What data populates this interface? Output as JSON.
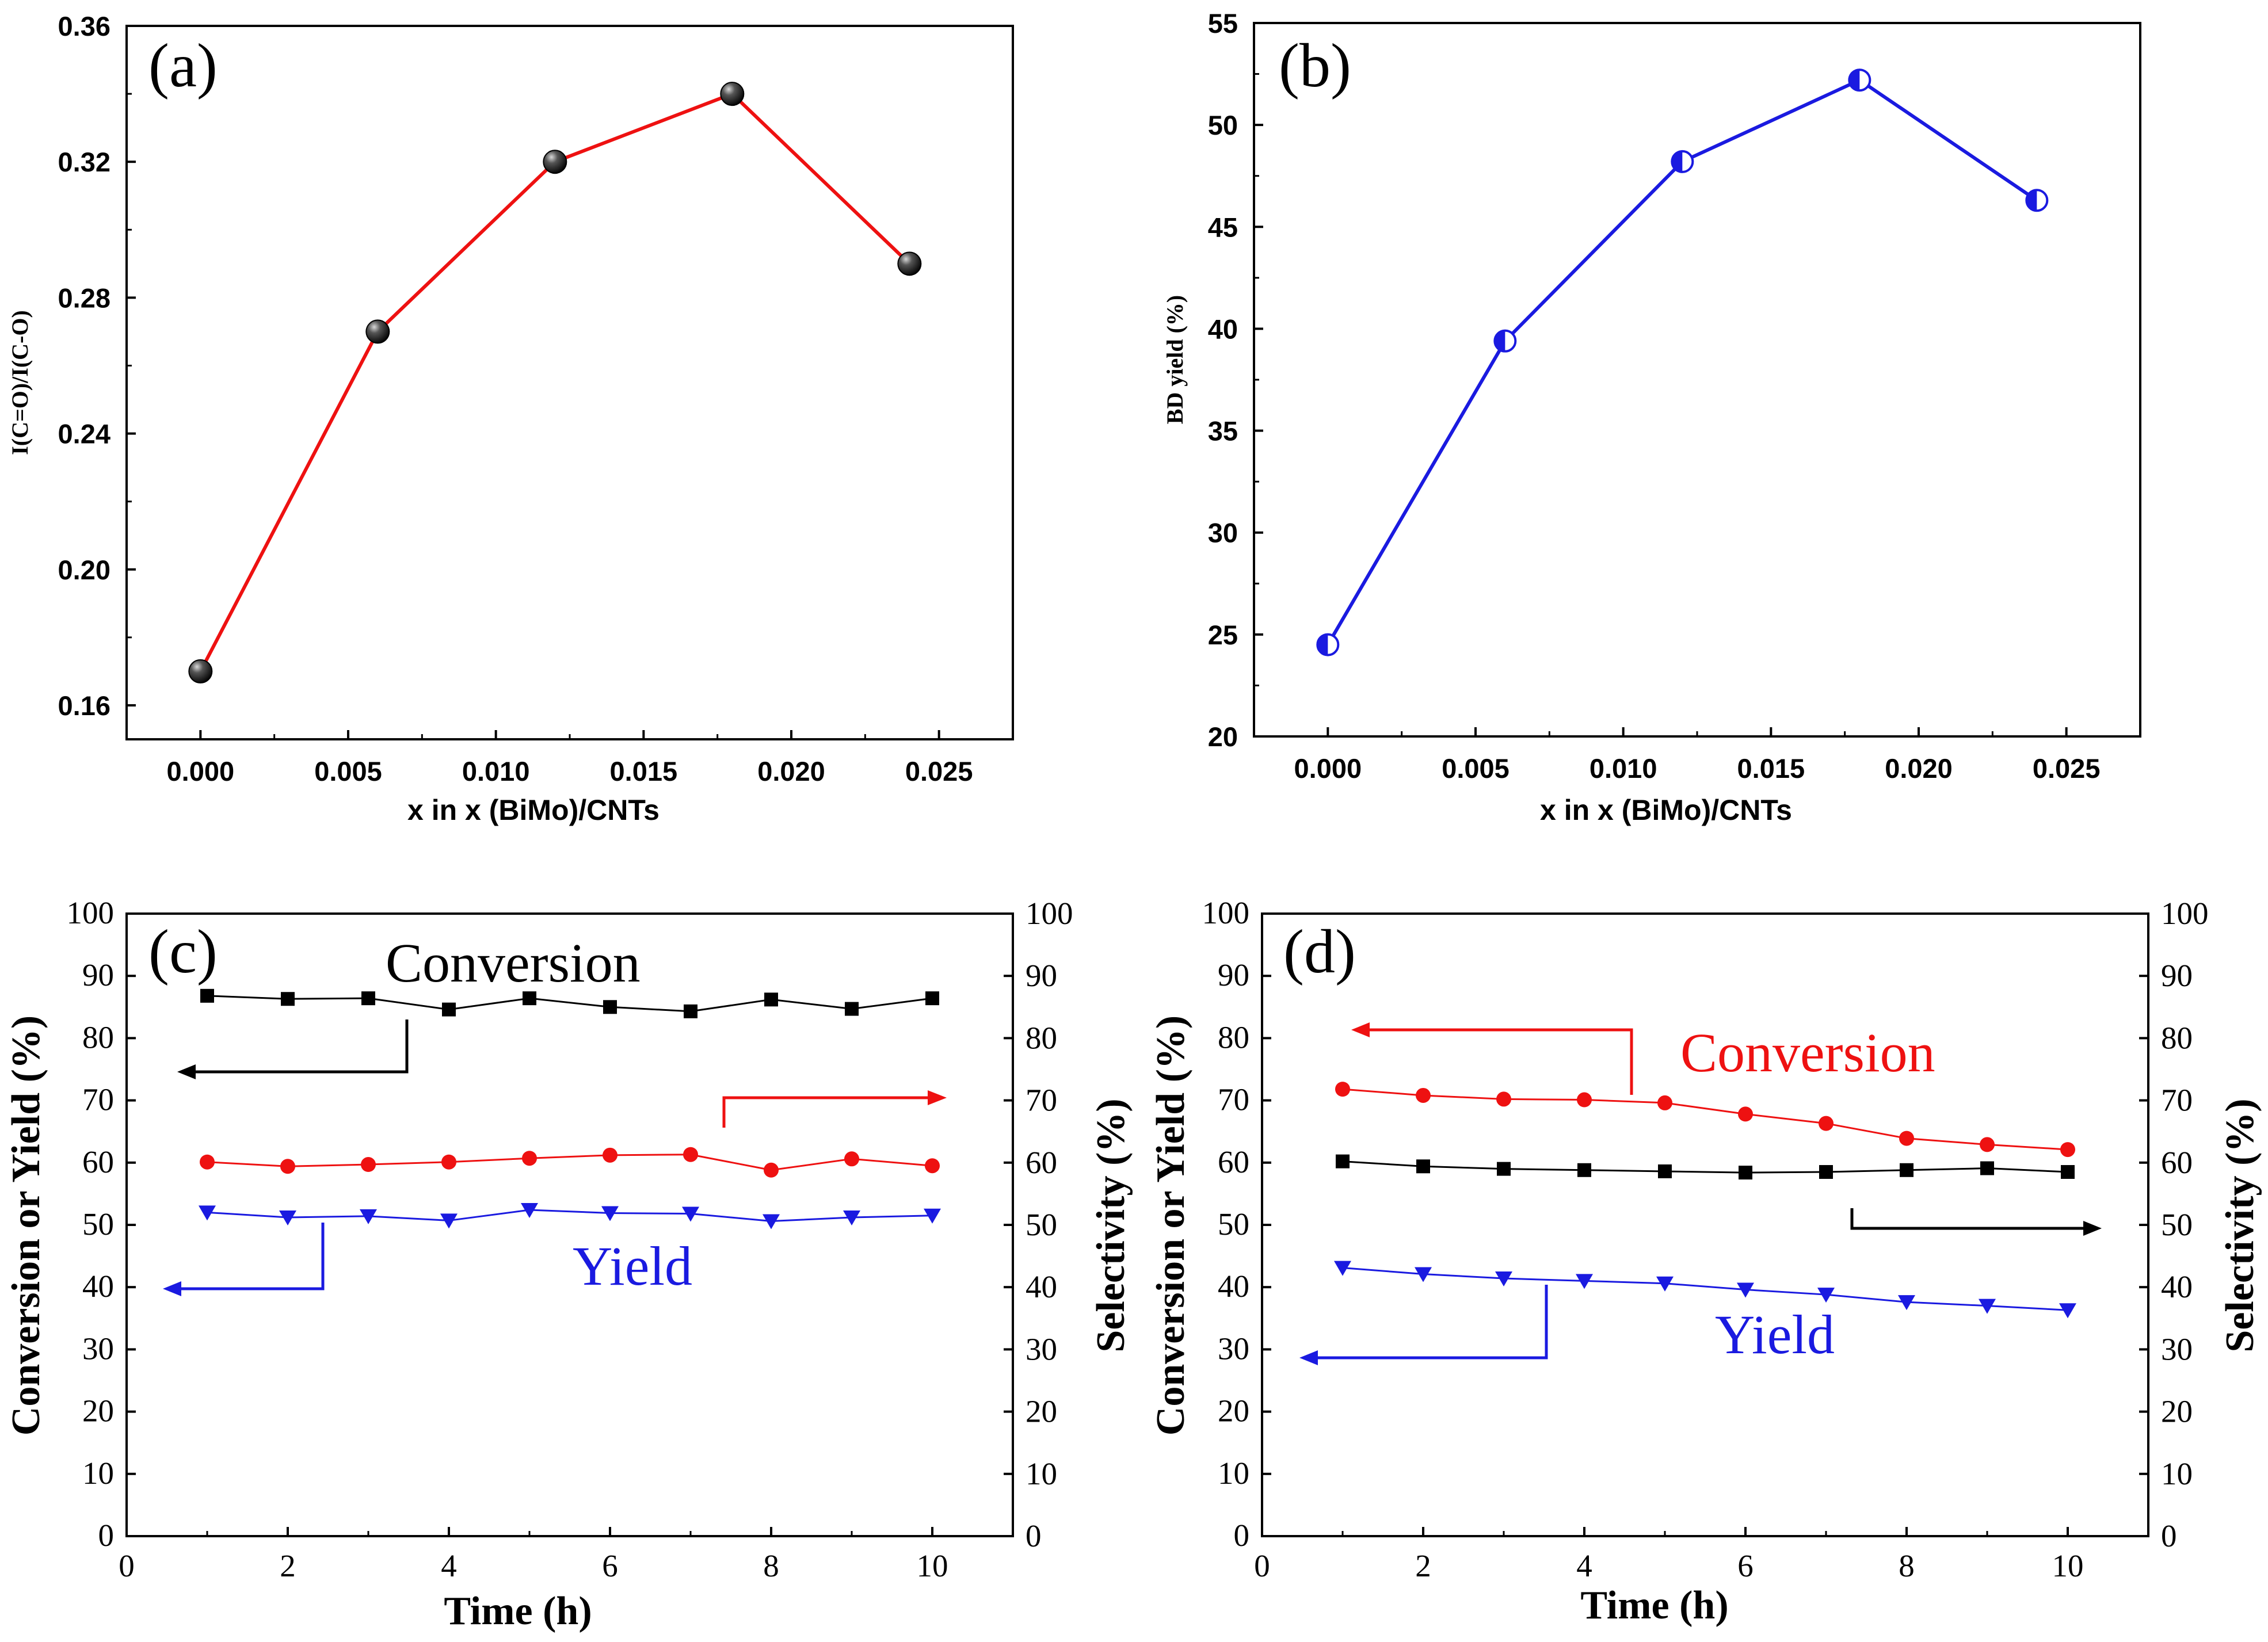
{
  "chart_data": [
    {
      "panel": "(a)",
      "type": "line",
      "xlabel": "x in x (BiMo)/CNTs",
      "ylabel": "I(C=O)/I(C-O)",
      "xlim": [
        -0.0025,
        0.0275
      ],
      "ylim": [
        0.15,
        0.36
      ],
      "xticks": [
        0.0,
        0.005,
        0.01,
        0.015,
        0.02,
        0.025
      ],
      "xtick_labels": [
        "0.000",
        "0.005",
        "0.010",
        "0.015",
        "0.020",
        "0.025"
      ],
      "yticks": [
        0.16,
        0.2,
        0.24,
        0.28,
        0.32,
        0.36
      ],
      "ytick_labels": [
        "0.16",
        "0.20",
        "0.24",
        "0.28",
        "0.32",
        "0.36"
      ],
      "series": [
        {
          "name": "I(C=O)/I(C-O)",
          "color": "#ee1111",
          "marker": "sphere",
          "marker_color": "#111111",
          "x": [
            0.0,
            0.006,
            0.012,
            0.018,
            0.024
          ],
          "y": [
            0.17,
            0.27,
            0.32,
            0.34,
            0.29
          ]
        }
      ]
    },
    {
      "panel": "(b)",
      "type": "line",
      "xlabel": "x in x (BiMo)/CNTs",
      "ylabel": "BD yield (%)",
      "xlim": [
        -0.0025,
        0.0275
      ],
      "ylim": [
        20,
        55
      ],
      "xticks": [
        0.0,
        0.005,
        0.01,
        0.015,
        0.02,
        0.025
      ],
      "xtick_labels": [
        "0.000",
        "0.005",
        "0.010",
        "0.015",
        "0.020",
        "0.025"
      ],
      "yticks": [
        20,
        25,
        30,
        35,
        40,
        45,
        50,
        55
      ],
      "ytick_labels": [
        "20",
        "25",
        "30",
        "35",
        "40",
        "45",
        "50",
        "55"
      ],
      "series": [
        {
          "name": "BD yield",
          "color": "#1a1ae0",
          "marker": "half-circle",
          "marker_color": "#1a1ae0",
          "x": [
            0.0,
            0.006,
            0.012,
            0.018,
            0.024
          ],
          "y": [
            24.5,
            39.4,
            48.2,
            52.2,
            46.3
          ]
        }
      ]
    },
    {
      "panel": "(c)",
      "type": "line",
      "xlabel": "Time (h)",
      "ylabel": "Conversion or Yield (%)",
      "y2label": "Selectivity (%)",
      "xlim": [
        0,
        11
      ],
      "ylim": [
        0,
        100
      ],
      "xticks": [
        0,
        2,
        4,
        6,
        8,
        10
      ],
      "xtick_labels": [
        "0",
        "2",
        "4",
        "6",
        "8",
        "10"
      ],
      "yticks": [
        0,
        10,
        20,
        30,
        40,
        50,
        60,
        70,
        80,
        90,
        100
      ],
      "ytick_labels": [
        "0",
        "10",
        "20",
        "30",
        "40",
        "50",
        "60",
        "70",
        "80",
        "90",
        "100"
      ],
      "series": [
        {
          "name": "Conversion",
          "axis": "left",
          "color": "#000000",
          "marker": "square",
          "x": [
            1,
            2,
            3,
            4,
            5,
            6,
            7,
            8,
            9,
            10
          ],
          "y": [
            86.8,
            86.3,
            86.4,
            84.6,
            86.4,
            85.0,
            84.3,
            86.2,
            84.7,
            86.4
          ]
        },
        {
          "name": "Selectivity",
          "axis": "right",
          "color": "#ee1111",
          "marker": "circle",
          "x": [
            1,
            2,
            3,
            4,
            5,
            6,
            7,
            8,
            9,
            10
          ],
          "y": [
            60.1,
            59.4,
            59.7,
            60.1,
            60.7,
            61.2,
            61.3,
            58.8,
            60.6,
            59.5
          ]
        },
        {
          "name": "Yield",
          "axis": "left",
          "color": "#1a1ae0",
          "marker": "triangle-down",
          "x": [
            1,
            2,
            3,
            4,
            5,
            6,
            7,
            8,
            9,
            10
          ],
          "y": [
            52.0,
            51.2,
            51.4,
            50.7,
            52.4,
            51.9,
            51.8,
            50.6,
            51.2,
            51.5
          ]
        }
      ],
      "annotations": [
        "Conversion",
        "Yield"
      ]
    },
    {
      "panel": "(d)",
      "type": "line",
      "xlabel": "Time (h)",
      "ylabel": "Conversion or Yield (%)",
      "y2label": "Selectivity (%)",
      "xlim": [
        0,
        11
      ],
      "ylim": [
        0,
        100
      ],
      "xticks": [
        0,
        2,
        4,
        6,
        8,
        10
      ],
      "xtick_labels": [
        "0",
        "2",
        "4",
        "6",
        "8",
        "10"
      ],
      "yticks": [
        0,
        10,
        20,
        30,
        40,
        50,
        60,
        70,
        80,
        90,
        100
      ],
      "ytick_labels": [
        "0",
        "10",
        "20",
        "30",
        "40",
        "50",
        "60",
        "70",
        "80",
        "90",
        "100"
      ],
      "series": [
        {
          "name": "Conversion",
          "axis": "left",
          "color": "#ee1111",
          "marker": "circle",
          "x": [
            1,
            2,
            3,
            4,
            5,
            6,
            7,
            8,
            9,
            10
          ],
          "y": [
            71.8,
            70.8,
            70.2,
            70.1,
            69.6,
            67.8,
            66.3,
            63.9,
            62.9,
            62.1
          ]
        },
        {
          "name": "Selectivity",
          "axis": "right",
          "color": "#000000",
          "marker": "square",
          "x": [
            1,
            2,
            3,
            4,
            5,
            6,
            7,
            8,
            9,
            10
          ],
          "y": [
            60.2,
            59.4,
            59.0,
            58.8,
            58.6,
            58.4,
            58.5,
            58.8,
            59.1,
            58.5
          ]
        },
        {
          "name": "Yield",
          "axis": "left",
          "color": "#1a1ae0",
          "marker": "triangle-down",
          "x": [
            1,
            2,
            3,
            4,
            5,
            6,
            7,
            8,
            9,
            10
          ],
          "y": [
            43.1,
            42.1,
            41.4,
            41.0,
            40.6,
            39.6,
            38.8,
            37.6,
            37.0,
            36.3
          ]
        }
      ],
      "annotations": [
        "Conversion",
        "Yield"
      ]
    }
  ]
}
